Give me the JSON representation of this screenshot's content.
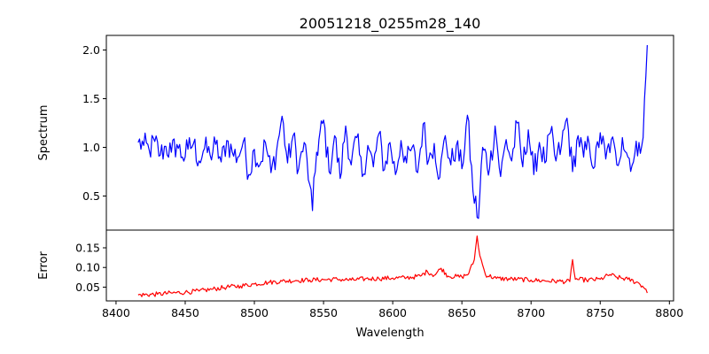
{
  "chart_data": [
    {
      "type": "line",
      "title": "20051218_0255m28_140",
      "xlabel": "",
      "ylabel": "Spectrum",
      "xlim": [
        8393,
        8803
      ],
      "ylim": [
        0.15,
        2.15
      ],
      "yticks": [
        0.5,
        1.0,
        1.5,
        2.0
      ],
      "yticklabels": [
        "0.5",
        "1.0",
        "1.5",
        "2.0"
      ],
      "grid": false,
      "series": [
        {
          "color": "#0000ff",
          "x_range": [
            8416,
            8784
          ],
          "points": [
            [
              8416,
              1.05
            ],
            [
              8420,
              1.02
            ],
            [
              8424,
              0.97
            ],
            [
              8428,
              1.06
            ],
            [
              8432,
              0.92
            ],
            [
              8436,
              1.01
            ],
            [
              8440,
              0.95
            ],
            [
              8444,
              1.03
            ],
            [
              8448,
              0.9
            ],
            [
              8452,
              0.98
            ],
            [
              8456,
              1.04
            ],
            [
              8460,
              0.86
            ],
            [
              8464,
              0.99
            ],
            [
              8468,
              0.92
            ],
            [
              8472,
              1.03
            ],
            [
              8476,
              0.85
            ],
            [
              8480,
              1.07
            ],
            [
              8484,
              0.95
            ],
            [
              8488,
              0.9
            ],
            [
              8492,
              1.06
            ],
            [
              8496,
              0.72
            ],
            [
              8500,
              0.98
            ],
            [
              8504,
              0.82
            ],
            [
              8508,
              1.05
            ],
            [
              8512,
              0.74
            ],
            [
              8516,
              0.96
            ],
            [
              8520,
              1.32
            ],
            [
              8524,
              0.84
            ],
            [
              8528,
              1.12
            ],
            [
              8532,
              0.78
            ],
            [
              8536,
              1.05
            ],
            [
              8540,
              0.62
            ],
            [
              8542,
              0.35
            ],
            [
              8545,
              0.95
            ],
            [
              8550,
              1.28
            ],
            [
              8554,
              0.75
            ],
            [
              8558,
              1.12
            ],
            [
              8562,
              0.68
            ],
            [
              8566,
              1.22
            ],
            [
              8570,
              0.82
            ],
            [
              8574,
              1.1
            ],
            [
              8578,
              0.7
            ],
            [
              8582,
              1.02
            ],
            [
              8586,
              0.8
            ],
            [
              8590,
              1.14
            ],
            [
              8594,
              0.77
            ],
            [
              8598,
              1.05
            ],
            [
              8602,
              0.72
            ],
            [
              8606,
              1.07
            ],
            [
              8610,
              0.84
            ],
            [
              8614,
              1.0
            ],
            [
              8618,
              0.74
            ],
            [
              8622,
              1.24
            ],
            [
              8626,
              0.87
            ],
            [
              8630,
              1.04
            ],
            [
              8634,
              0.69
            ],
            [
              8638,
              1.12
            ],
            [
              8642,
              0.82
            ],
            [
              8646,
              1.02
            ],
            [
              8650,
              0.78
            ],
            [
              8654,
              1.33
            ],
            [
              8658,
              0.55
            ],
            [
              8662,
              0.27
            ],
            [
              8665,
              1.0
            ],
            [
              8670,
              0.78
            ],
            [
              8674,
              1.22
            ],
            [
              8678,
              0.7
            ],
            [
              8682,
              1.08
            ],
            [
              8686,
              0.86
            ],
            [
              8690,
              1.25
            ],
            [
              8694,
              0.8
            ],
            [
              8698,
              1.18
            ],
            [
              8702,
              0.72
            ],
            [
              8706,
              1.05
            ],
            [
              8710,
              0.84
            ],
            [
              8714,
              1.15
            ],
            [
              8718,
              0.86
            ],
            [
              8722,
              1.02
            ],
            [
              8726,
              1.3
            ],
            [
              8730,
              0.75
            ],
            [
              8734,
              1.12
            ],
            [
              8738,
              0.9
            ],
            [
              8742,
              1.04
            ],
            [
              8746,
              0.8
            ],
            [
              8750,
              1.15
            ],
            [
              8754,
              0.88
            ],
            [
              8758,
              1.08
            ],
            [
              8762,
              0.82
            ],
            [
              8766,
              1.1
            ],
            [
              8770,
              0.9
            ],
            [
              8774,
              0.85
            ],
            [
              8778,
              1.05
            ],
            [
              8781,
              1.1
            ],
            [
              8784,
              2.05
            ]
          ]
        }
      ]
    },
    {
      "type": "line",
      "title": "",
      "xlabel": "Wavelength",
      "ylabel": "Error",
      "xlim": [
        8393,
        8803
      ],
      "ylim": [
        0.015,
        0.195
      ],
      "xticks": [
        8400,
        8450,
        8500,
        8550,
        8600,
        8650,
        8700,
        8750,
        8800
      ],
      "xticklabels": [
        "8400",
        "8450",
        "8500",
        "8550",
        "8600",
        "8650",
        "8700",
        "8750",
        "8800"
      ],
      "yticks": [
        0.05,
        0.1,
        0.15
      ],
      "yticklabels": [
        "0.05",
        "0.10",
        "0.15"
      ],
      "grid": false,
      "series": [
        {
          "color": "#ff0000",
          "points": [
            [
              8416,
              0.03
            ],
            [
              8430,
              0.032
            ],
            [
              8440,
              0.035
            ],
            [
              8450,
              0.037
            ],
            [
              8460,
              0.04
            ],
            [
              8470,
              0.045
            ],
            [
              8480,
              0.05
            ],
            [
              8490,
              0.053
            ],
            [
              8500,
              0.058
            ],
            [
              8510,
              0.062
            ],
            [
              8520,
              0.065
            ],
            [
              8530,
              0.067
            ],
            [
              8540,
              0.068
            ],
            [
              8550,
              0.069
            ],
            [
              8560,
              0.07
            ],
            [
              8570,
              0.068
            ],
            [
              8580,
              0.071
            ],
            [
              8590,
              0.072
            ],
            [
              8600,
              0.073
            ],
            [
              8610,
              0.074
            ],
            [
              8620,
              0.078
            ],
            [
              8625,
              0.09
            ],
            [
              8630,
              0.08
            ],
            [
              8635,
              0.098
            ],
            [
              8640,
              0.078
            ],
            [
              8650,
              0.076
            ],
            [
              8655,
              0.085
            ],
            [
              8659,
              0.12
            ],
            [
              8661,
              0.18
            ],
            [
              8663,
              0.13
            ],
            [
              8667,
              0.082
            ],
            [
              8675,
              0.072
            ],
            [
              8690,
              0.07
            ],
            [
              8700,
              0.068
            ],
            [
              8710,
              0.066
            ],
            [
              8720,
              0.065
            ],
            [
              8728,
              0.064
            ],
            [
              8730,
              0.12
            ],
            [
              8732,
              0.07
            ],
            [
              8740,
              0.068
            ],
            [
              8750,
              0.07
            ],
            [
              8757,
              0.082
            ],
            [
              8762,
              0.075
            ],
            [
              8770,
              0.07
            ],
            [
              8778,
              0.06
            ],
            [
              8783,
              0.045
            ],
            [
              8784,
              0.035
            ]
          ]
        }
      ]
    }
  ]
}
